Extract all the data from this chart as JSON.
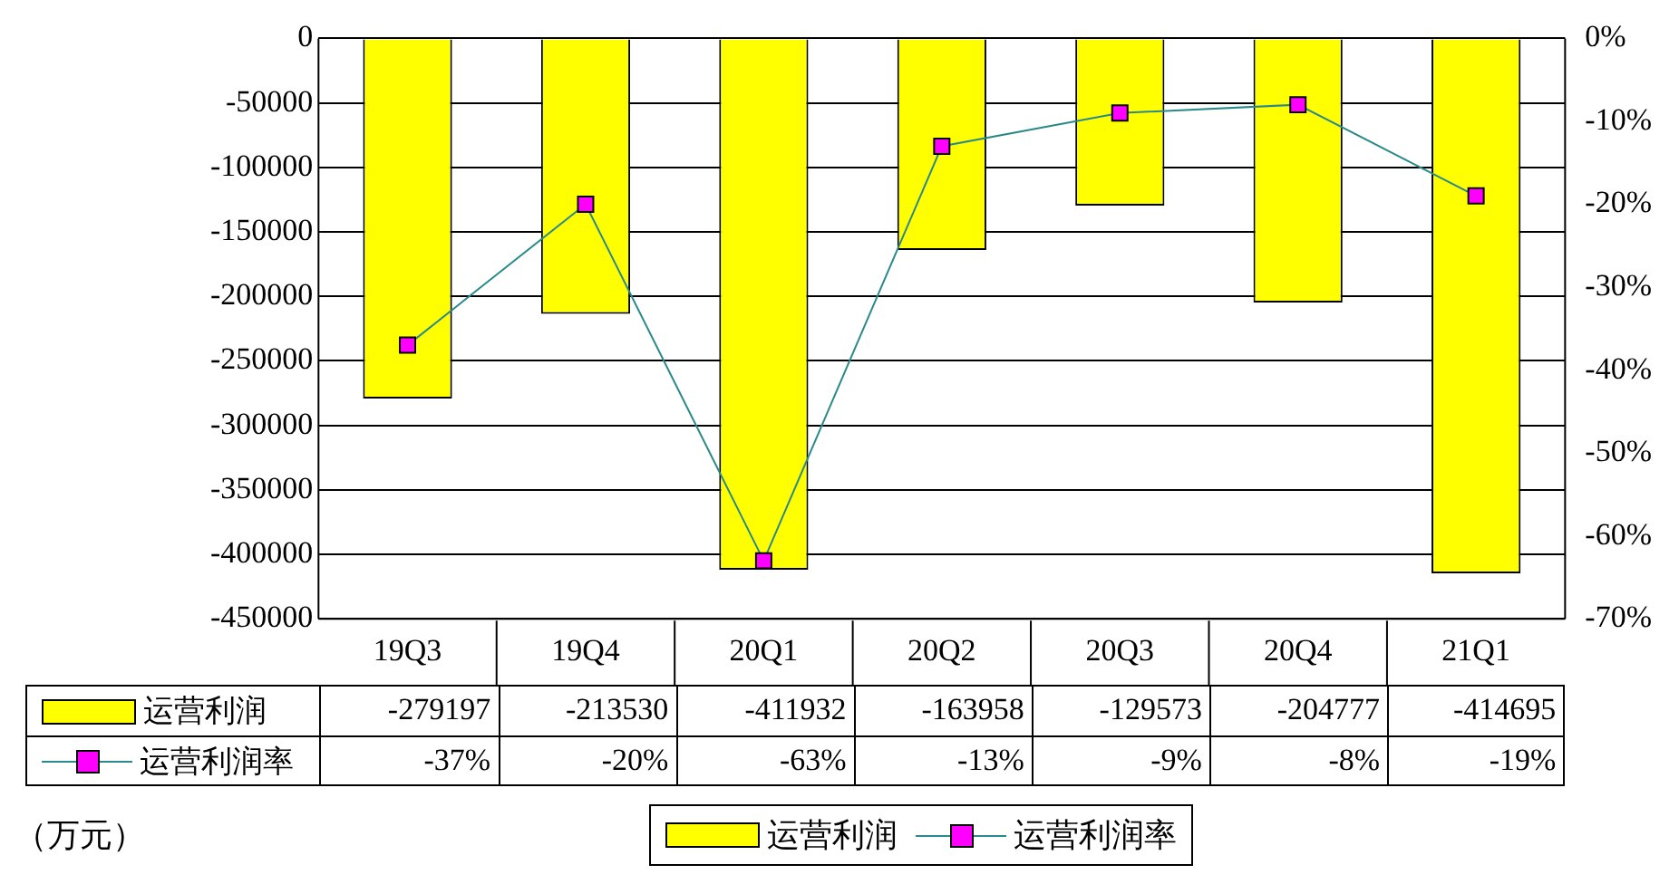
{
  "chart_data": {
    "type": "bar",
    "categories": [
      "19Q3",
      "19Q4",
      "20Q1",
      "20Q2",
      "20Q3",
      "20Q4",
      "21Q1"
    ],
    "series": [
      {
        "name": "运营利润",
        "color": "#ffff00",
        "values": [
          -279197,
          -213530,
          -411932,
          -163958,
          -129573,
          -204777,
          -414695
        ],
        "value_labels": [
          "-279197",
          "-213530",
          "-411932",
          "-163958",
          "-129573",
          "-204777",
          "-414695"
        ]
      },
      {
        "name": "运营利润率",
        "type": "line",
        "axis": "y2",
        "color": "#ff00ff",
        "values": [
          -37,
          -20,
          -63,
          -13,
          -9,
          -8,
          -19
        ],
        "value_labels": [
          "-37%",
          "-20%",
          "-63%",
          "-13%",
          "-9%",
          "-8%",
          "-19%"
        ]
      }
    ],
    "ylim": [
      -450000,
      0
    ],
    "yticks": [
      -450000,
      -400000,
      -350000,
      -300000,
      -250000,
      -200000,
      -150000,
      -100000,
      -50000,
      0
    ],
    "y2lim": [
      -70,
      0
    ],
    "y2ticks": [
      {
        "value": -70,
        "label": "-70%"
      },
      {
        "value": -60,
        "label": "-60%"
      },
      {
        "value": -50,
        "label": "-50%"
      },
      {
        "value": -40,
        "label": "-40%"
      },
      {
        "value": -30,
        "label": "-30%"
      },
      {
        "value": -20,
        "label": "-20%"
      },
      {
        "value": -10,
        "label": "-10%"
      },
      {
        "value": 0,
        "label": "0%"
      }
    ],
    "grid": "y",
    "legend": "bottom",
    "marker": "square",
    "line_style": "solid",
    "annotations": [
      "（万元）"
    ]
  }
}
